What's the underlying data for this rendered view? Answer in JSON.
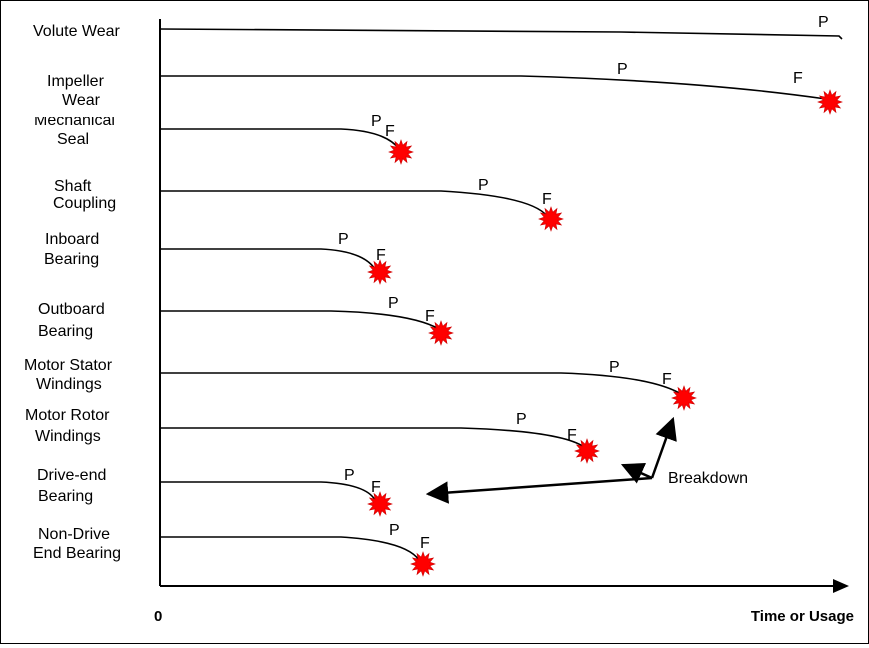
{
  "axes": {
    "origin_label": "0",
    "x_label": "Time or Usage"
  },
  "components": [
    {
      "id": "volute-wear",
      "label": [
        "Volute Wear"
      ],
      "markers": [
        "P"
      ],
      "failure_star": false
    },
    {
      "id": "impeller-wear",
      "label": [
        "Impeller",
        "Wear"
      ],
      "markers": [
        "P",
        "F"
      ],
      "failure_star": true
    },
    {
      "id": "mechanical-seal",
      "label": [
        "Mechanical",
        "Seal"
      ],
      "markers": [
        "P",
        "F"
      ],
      "failure_star": true
    },
    {
      "id": "shaft-coupling",
      "label": [
        "Shaft",
        "Coupling"
      ],
      "markers": [
        "P",
        "F"
      ],
      "failure_star": true
    },
    {
      "id": "inboard-bearing",
      "label": [
        "Inboard",
        "Bearing"
      ],
      "markers": [
        "P",
        "F"
      ],
      "failure_star": true
    },
    {
      "id": "outboard-bearing",
      "label": [
        "Outboard",
        "Bearing"
      ],
      "markers": [
        "P",
        "F"
      ],
      "failure_star": true
    },
    {
      "id": "motor-stator-windings",
      "label": [
        "Motor Stator",
        "Windings"
      ],
      "markers": [
        "P",
        "F"
      ],
      "failure_star": true
    },
    {
      "id": "motor-rotor-windings",
      "label": [
        "Motor Rotor",
        "Windings"
      ],
      "markers": [
        "P",
        "F"
      ],
      "failure_star": true
    },
    {
      "id": "drive-end-bearing",
      "label": [
        "Drive-end",
        "Bearing"
      ],
      "markers": [
        "P",
        "F"
      ],
      "failure_star": true
    },
    {
      "id": "non-drive-end-bearing",
      "label": [
        "Non-Drive",
        "End Bearing"
      ],
      "markers": [
        "P",
        "F"
      ],
      "failure_star": true
    }
  ],
  "annotation": {
    "label": "Breakdown"
  },
  "colors": {
    "line": "#000000",
    "failure": "#ff0000"
  }
}
